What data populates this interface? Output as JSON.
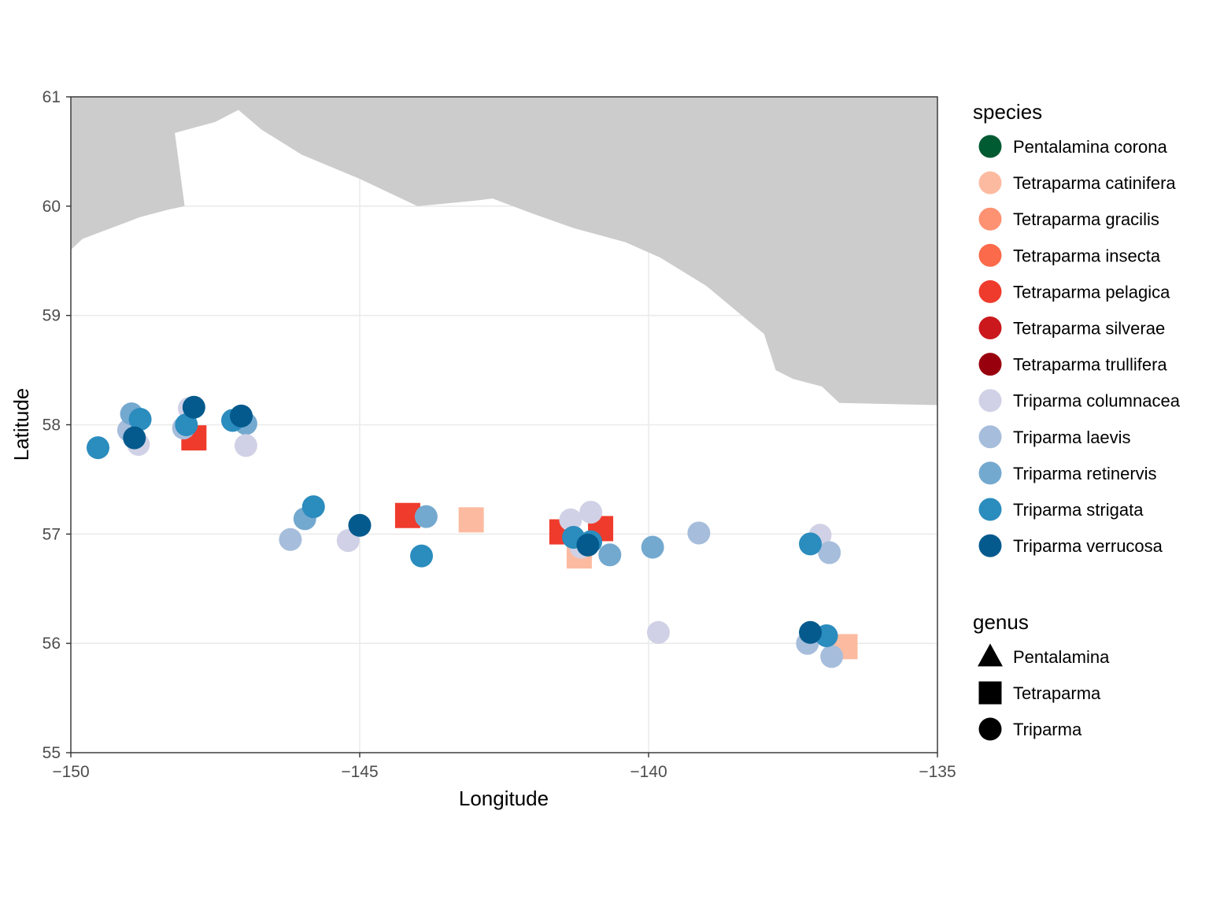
{
  "chart_data": {
    "type": "scatter",
    "xlabel": "Longitude",
    "ylabel": "Latitude",
    "xlim": [
      -150,
      -135
    ],
    "ylim": [
      55,
      61
    ],
    "x_ticks": [
      "-150",
      "-145",
      "-140",
      "-135"
    ],
    "y_ticks": [
      "55",
      "56",
      "57",
      "58",
      "59",
      "60",
      "61"
    ],
    "grid": true,
    "legend_placement": "right",
    "land_color": "#cccccc",
    "land_outline": [
      [
        -150,
        61
      ],
      [
        -150,
        59.6
      ],
      [
        -149.8,
        59.7
      ],
      [
        -149.3,
        59.8
      ],
      [
        -148.8,
        59.9
      ],
      [
        -148.3,
        59.97
      ],
      [
        -148.03,
        60.0
      ],
      [
        -148.2,
        60.67
      ],
      [
        -147.5,
        60.77
      ],
      [
        -147.1,
        60.88
      ],
      [
        -146.7,
        60.7
      ],
      [
        -146.0,
        60.47
      ],
      [
        -145.0,
        60.25
      ],
      [
        -144.0,
        60.0
      ],
      [
        -143.0,
        60.05
      ],
      [
        -142.7,
        60.07
      ],
      [
        -142.0,
        59.93
      ],
      [
        -141.3,
        59.8
      ],
      [
        -140.4,
        59.67
      ],
      [
        -139.8,
        59.53
      ],
      [
        -139.0,
        59.27
      ],
      [
        -138.0,
        58.83
      ],
      [
        -137.8,
        58.5
      ],
      [
        -137.5,
        58.42
      ],
      [
        -137.0,
        58.35
      ],
      [
        -136.7,
        58.2
      ],
      [
        -135,
        58.18
      ],
      [
        -135,
        61
      ]
    ],
    "species_legend_title": "species",
    "genus_legend_title": "genus",
    "species": [
      {
        "name": "Pentalamina corona",
        "color": "#005a32"
      },
      {
        "name": "Tetraparma catinifera",
        "color": "#fcbba1"
      },
      {
        "name": "Tetraparma gracilis",
        "color": "#fc9272"
      },
      {
        "name": "Tetraparma insecta",
        "color": "#fb6a4a"
      },
      {
        "name": "Tetraparma pelagica",
        "color": "#ef3b2c"
      },
      {
        "name": "Tetraparma silverae",
        "color": "#cb181d"
      },
      {
        "name": "Tetraparma trullifera",
        "color": "#99000d"
      },
      {
        "name": "Triparma columnacea",
        "color": "#d0d1e6"
      },
      {
        "name": "Triparma laevis",
        "color": "#a6bddb"
      },
      {
        "name": "Triparma retinervis",
        "color": "#74a9cf"
      },
      {
        "name": "Triparma strigata",
        "color": "#2b8cbe"
      },
      {
        "name": "Triparma verrucosa",
        "color": "#045a8d"
      }
    ],
    "genera": [
      {
        "name": "Pentalamina",
        "shape": "triangle"
      },
      {
        "name": "Tetraparma",
        "shape": "square"
      },
      {
        "name": "Triparma",
        "shape": "circle"
      }
    ],
    "points": [
      {
        "x": -147.87,
        "y": 57.88,
        "species": "Tetraparma pelagica",
        "genus": "Tetraparma"
      },
      {
        "x": -144.17,
        "y": 57.17,
        "species": "Tetraparma pelagica",
        "genus": "Tetraparma"
      },
      {
        "x": -143.07,
        "y": 57.13,
        "species": "Tetraparma catinifera",
        "genus": "Tetraparma"
      },
      {
        "x": -141.5,
        "y": 57.02,
        "species": "Tetraparma pelagica",
        "genus": "Tetraparma"
      },
      {
        "x": -140.83,
        "y": 57.05,
        "species": "Tetraparma pelagica",
        "genus": "Tetraparma"
      },
      {
        "x": -141.2,
        "y": 56.8,
        "species": "Tetraparma catinifera",
        "genus": "Tetraparma"
      },
      {
        "x": -136.6,
        "y": 55.97,
        "species": "Tetraparma catinifera",
        "genus": "Tetraparma"
      },
      {
        "x": -149.0,
        "y": 57.95,
        "species": "Triparma laevis",
        "genus": "Triparma"
      },
      {
        "x": -148.83,
        "y": 57.82,
        "species": "Triparma columnacea",
        "genus": "Triparma"
      },
      {
        "x": -148.95,
        "y": 58.1,
        "species": "Triparma retinervis",
        "genus": "Triparma"
      },
      {
        "x": -148.8,
        "y": 58.05,
        "species": "Triparma strigata",
        "genus": "Triparma"
      },
      {
        "x": -149.53,
        "y": 57.79,
        "species": "Triparma strigata",
        "genus": "Triparma"
      },
      {
        "x": -148.9,
        "y": 57.88,
        "species": "Triparma verrucosa",
        "genus": "Triparma"
      },
      {
        "x": -148.05,
        "y": 57.97,
        "species": "Triparma laevis",
        "genus": "Triparma"
      },
      {
        "x": -147.95,
        "y": 58.15,
        "species": "Triparma columnacea",
        "genus": "Triparma"
      },
      {
        "x": -148.0,
        "y": 58.0,
        "species": "Triparma strigata",
        "genus": "Triparma"
      },
      {
        "x": -147.87,
        "y": 58.16,
        "species": "Triparma verrucosa",
        "genus": "Triparma"
      },
      {
        "x": -146.97,
        "y": 58.01,
        "species": "Triparma retinervis",
        "genus": "Triparma"
      },
      {
        "x": -147.2,
        "y": 58.04,
        "species": "Triparma strigata",
        "genus": "Triparma"
      },
      {
        "x": -146.97,
        "y": 57.81,
        "species": "Triparma columnacea",
        "genus": "Triparma"
      },
      {
        "x": -147.05,
        "y": 58.08,
        "species": "Triparma verrucosa",
        "genus": "Triparma"
      },
      {
        "x": -146.2,
        "y": 56.95,
        "species": "Triparma laevis",
        "genus": "Triparma"
      },
      {
        "x": -145.95,
        "y": 57.14,
        "species": "Triparma retinervis",
        "genus": "Triparma"
      },
      {
        "x": -145.8,
        "y": 57.25,
        "species": "Triparma strigata",
        "genus": "Triparma"
      },
      {
        "x": -145.2,
        "y": 56.94,
        "species": "Triparma columnacea",
        "genus": "Triparma"
      },
      {
        "x": -145.0,
        "y": 57.08,
        "species": "Triparma verrucosa",
        "genus": "Triparma"
      },
      {
        "x": -143.85,
        "y": 57.16,
        "species": "Triparma retinervis",
        "genus": "Triparma"
      },
      {
        "x": -143.93,
        "y": 56.8,
        "species": "Triparma strigata",
        "genus": "Triparma"
      },
      {
        "x": -141.35,
        "y": 57.13,
        "species": "Triparma columnacea",
        "genus": "Triparma"
      },
      {
        "x": -141.0,
        "y": 57.2,
        "species": "Triparma columnacea",
        "genus": "Triparma"
      },
      {
        "x": -141.17,
        "y": 56.88,
        "species": "Triparma columnacea",
        "genus": "Triparma"
      },
      {
        "x": -141.3,
        "y": 56.97,
        "species": "Triparma strigata",
        "genus": "Triparma"
      },
      {
        "x": -141.0,
        "y": 56.93,
        "species": "Triparma strigata",
        "genus": "Triparma"
      },
      {
        "x": -140.67,
        "y": 56.81,
        "species": "Triparma retinervis",
        "genus": "Triparma"
      },
      {
        "x": -141.05,
        "y": 56.9,
        "species": "Triparma verrucosa",
        "genus": "Triparma"
      },
      {
        "x": -139.93,
        "y": 56.88,
        "species": "Triparma retinervis",
        "genus": "Triparma"
      },
      {
        "x": -139.13,
        "y": 57.01,
        "species": "Triparma laevis",
        "genus": "Triparma"
      },
      {
        "x": -139.83,
        "y": 56.1,
        "species": "Triparma columnacea",
        "genus": "Triparma"
      },
      {
        "x": -137.03,
        "y": 56.99,
        "species": "Triparma columnacea",
        "genus": "Triparma"
      },
      {
        "x": -136.87,
        "y": 56.83,
        "species": "Triparma laevis",
        "genus": "Triparma"
      },
      {
        "x": -137.2,
        "y": 56.91,
        "species": "Triparma strigata",
        "genus": "Triparma"
      },
      {
        "x": -137.25,
        "y": 56.0,
        "species": "Triparma laevis",
        "genus": "Triparma"
      },
      {
        "x": -136.83,
        "y": 55.88,
        "species": "Triparma laevis",
        "genus": "Triparma"
      },
      {
        "x": -136.92,
        "y": 56.07,
        "species": "Triparma strigata",
        "genus": "Triparma"
      },
      {
        "x": -137.2,
        "y": 56.1,
        "species": "Triparma verrucosa",
        "genus": "Triparma"
      }
    ]
  }
}
